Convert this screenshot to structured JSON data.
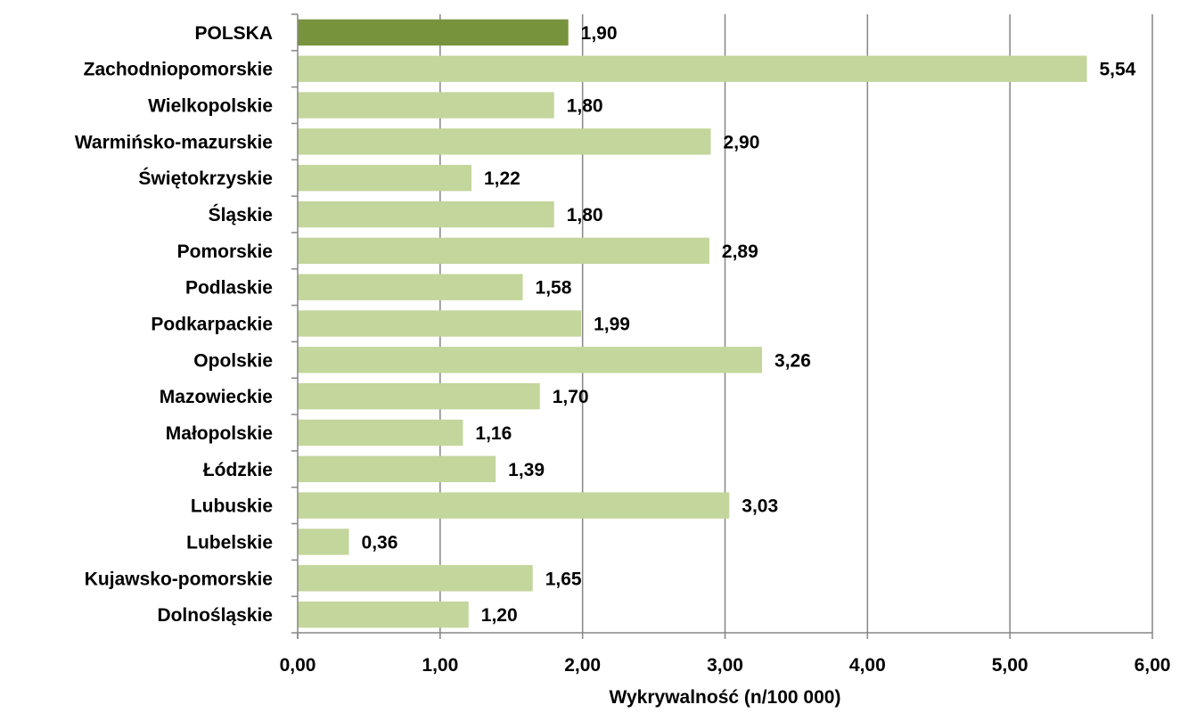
{
  "chart_data": {
    "type": "bar",
    "orientation": "horizontal",
    "categories": [
      "POLSKA",
      "Zachodniopomorskie",
      "Wielkopolskie",
      "Warmińsko-mazurskie",
      "Świętokrzyskie",
      "Śląskie",
      "Pomorskie",
      "Podlaskie",
      "Podkarpackie",
      "Opolskie",
      "Mazowieckie",
      "Małopolskie",
      "Łódzkie",
      "Lubuskie",
      "Lubelskie",
      "Kujawsko-pomorskie",
      "Dolnośląskie"
    ],
    "values": [
      1.9,
      5.54,
      1.8,
      2.9,
      1.22,
      1.8,
      2.89,
      1.58,
      1.99,
      3.26,
      1.7,
      1.16,
      1.39,
      3.03,
      0.36,
      1.65,
      1.2
    ],
    "value_labels": [
      "1,90",
      "5,54",
      "1,80",
      "2,90",
      "1,22",
      "1,80",
      "2,89",
      "1,58",
      "1,99",
      "3,26",
      "1,70",
      "1,16",
      "1,39",
      "3,03",
      "0,36",
      "1,65",
      "1,20"
    ],
    "xlabel": "Wykrywalność (n/100 000)",
    "ylabel": "",
    "xlim": [
      0,
      6
    ],
    "xticks": [
      0,
      1,
      2,
      3,
      4,
      5,
      6
    ],
    "xtick_labels": [
      "0,00",
      "1,00",
      "2,00",
      "3,00",
      "4,00",
      "5,00",
      "6,00"
    ],
    "grid": "vertical",
    "legend": "none",
    "colors": {
      "highlight": "#77933C",
      "bar": "#C3D69B",
      "grid": "#868686",
      "axis": "#868686"
    },
    "highlight_index": 0
  }
}
